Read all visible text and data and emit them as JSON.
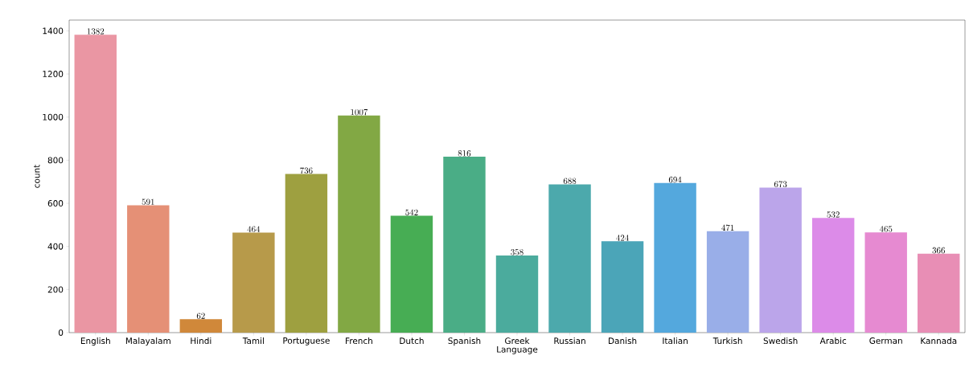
{
  "chart_data": {
    "type": "bar",
    "xlabel": "Language",
    "ylabel": "count",
    "categories": [
      "English",
      "Malayalam",
      "Hindi",
      "Tamil",
      "Portuguese",
      "French",
      "Dutch",
      "Spanish",
      "Greek",
      "Russian",
      "Danish",
      "Italian",
      "Turkish",
      "Swedish",
      "Arabic",
      "German",
      "Kannada"
    ],
    "values": [
      1382,
      591,
      62,
      464,
      736,
      1007,
      542,
      816,
      358,
      688,
      424,
      694,
      471,
      673,
      532,
      465,
      366
    ],
    "colors": [
      "#ea96a3",
      "#e59076",
      "#d0883a",
      "#b79a4a",
      "#9ea040",
      "#82a844",
      "#47ad54",
      "#4aad86",
      "#4bab9d",
      "#4ca9ac",
      "#4ba5b8",
      "#54a8dd",
      "#99aee8",
      "#bba5ea",
      "#dc8be8",
      "#e68ad1",
      "#e88eb5"
    ],
    "ylim": [
      0,
      1450
    ],
    "yticks": [
      0,
      200,
      400,
      600,
      800,
      1000,
      1200,
      1400
    ],
    "data_labels": true
  }
}
